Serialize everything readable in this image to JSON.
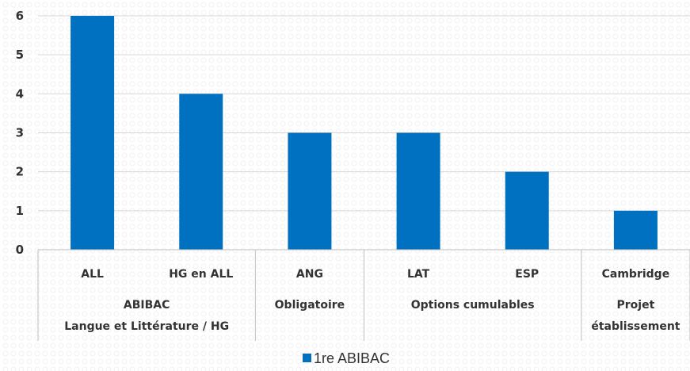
{
  "chart_data": {
    "type": "bar",
    "categories": [
      "ALL",
      "HG en ALL",
      "ANG",
      "LAT",
      "ESP",
      "Cambridge"
    ],
    "groups": [
      {
        "lines": [
          "ABIBAC",
          "Langue et Littérature / HG"
        ],
        "span": [
          0,
          1
        ]
      },
      {
        "lines": [
          "Obligatoire"
        ],
        "span": [
          2,
          2
        ]
      },
      {
        "lines": [
          "Options cumulables"
        ],
        "span": [
          3,
          4
        ]
      },
      {
        "lines": [
          "Projet",
          "établissement"
        ],
        "span": [
          5,
          5
        ]
      }
    ],
    "series": [
      {
        "name": "1re ABIBAC",
        "values": [
          6,
          4,
          3,
          3,
          2,
          1
        ],
        "color": "#0070C0"
      }
    ],
    "ylim": [
      0,
      6
    ],
    "yticks": [
      0,
      1,
      2,
      3,
      4,
      5,
      6
    ],
    "grid": true,
    "legend": "bottom-center"
  }
}
